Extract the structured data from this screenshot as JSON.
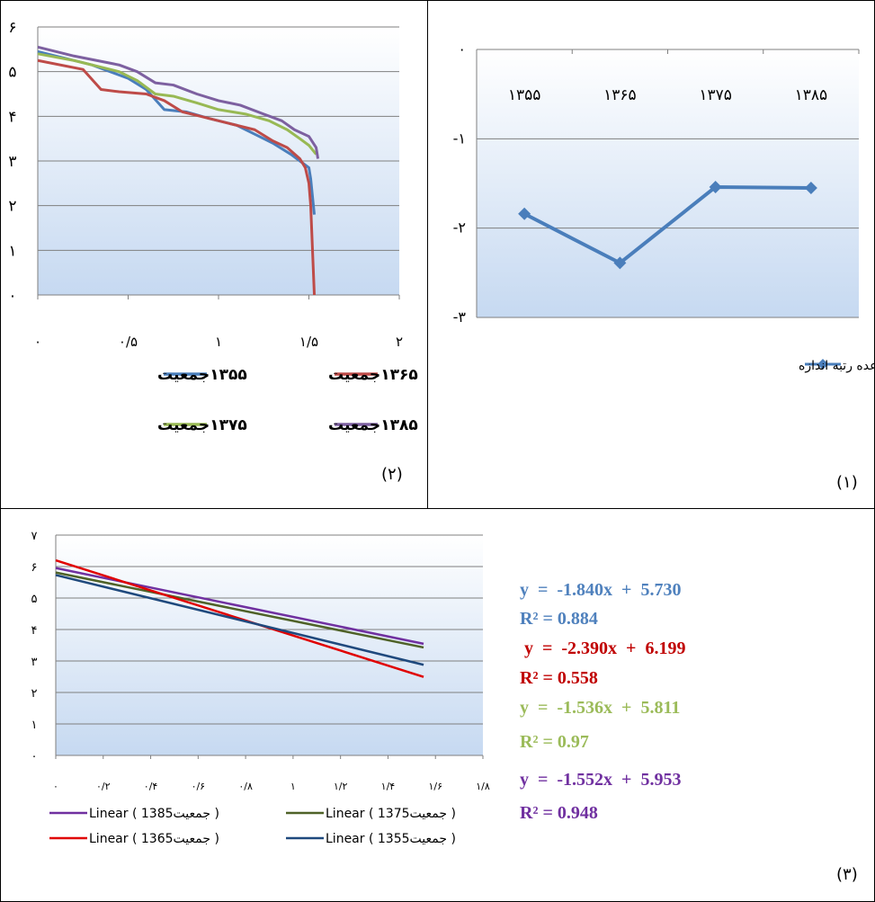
{
  "panels": {
    "p1_label": "(۱)",
    "p2_label": "(۲)",
    "p3_label": "(۳)"
  },
  "colors": {
    "blue": "#4a7ebb",
    "red": "#be4b48",
    "green": "#98b954",
    "purple": "#7d60a0",
    "dark_green": "#4f6228",
    "navy": "#1f497d",
    "pure_red": "#e00000",
    "eq_blue": "#4f81bd",
    "eq_red": "#c00000",
    "eq_green": "#9bbb59",
    "eq_purple": "#7030a0"
  },
  "equations": [
    {
      "eq": "y  =  -1.840x  +  5.730",
      "r2": "R² = 0.884",
      "color": "#4f81bd"
    },
    {
      "eq": " y  =  -2.390x  +  6.199",
      "r2": "R² = 0.558",
      "color": "#c00000"
    },
    {
      "eq": "y  =  -1.536x  +  5.811",
      "r2": "R² = 0.97",
      "color": "#9bbb59"
    },
    {
      "eq": "y  =  -1.552x  +  5.953",
      "r2": "R² = 0.948",
      "color": "#7030a0"
    }
  ],
  "chart_data": [
    {
      "id": "chart1",
      "type": "line",
      "categories": [
        "۱۳۵۵",
        "۱۳۶۵",
        "۱۳۷۵",
        "۱۳۸۵"
      ],
      "series": [
        {
          "name": "ضریب b در قاعده رتبه اندازه",
          "values": [
            -1.84,
            -2.39,
            -1.54,
            -1.55
          ]
        }
      ],
      "ylim": [
        -3,
        0
      ],
      "yticks": [
        "۰",
        "-۱",
        "-۲",
        "-۳"
      ],
      "legend": "bottom",
      "grid": true
    },
    {
      "id": "chart2",
      "type": "line",
      "xlim": [
        0,
        2
      ],
      "ylim": [
        0,
        6
      ],
      "xticks": [
        "۰",
        "۰/۵",
        "۱",
        "۱/۵",
        "۲"
      ],
      "yticks": [
        "۰",
        "۱",
        "۲",
        "۳",
        "۴",
        "۵",
        "۶"
      ],
      "series": [
        {
          "name": "جمعیت ۱۳۵۵",
          "color": "#4a7ebb",
          "points": [
            [
              0,
              5.45
            ],
            [
              0.3,
              5.15
            ],
            [
              0.5,
              4.85
            ],
            [
              0.6,
              4.6
            ],
            [
              0.7,
              4.15
            ],
            [
              0.82,
              4.1
            ],
            [
              0.95,
              3.95
            ],
            [
              1.1,
              3.8
            ],
            [
              1.2,
              3.6
            ],
            [
              1.3,
              3.4
            ],
            [
              1.4,
              3.15
            ],
            [
              1.45,
              3.0
            ],
            [
              1.5,
              2.85
            ],
            [
              1.51,
              2.6
            ],
            [
              1.53,
              1.8
            ]
          ]
        },
        {
          "name": "جمعیت ۱۳۶۵",
          "color": "#be4b48",
          "points": [
            [
              0,
              5.25
            ],
            [
              0.25,
              5.05
            ],
            [
              0.35,
              4.6
            ],
            [
              0.45,
              4.55
            ],
            [
              0.6,
              4.5
            ],
            [
              0.7,
              4.35
            ],
            [
              0.8,
              4.1
            ],
            [
              0.9,
              4.0
            ],
            [
              1.05,
              3.85
            ],
            [
              1.2,
              3.7
            ],
            [
              1.3,
              3.45
            ],
            [
              1.38,
              3.3
            ],
            [
              1.45,
              3.05
            ],
            [
              1.48,
              2.85
            ],
            [
              1.5,
              2.5
            ],
            [
              1.51,
              2.0
            ],
            [
              1.52,
              1.0
            ],
            [
              1.53,
              0.0
            ]
          ]
        },
        {
          "name": "جمعیت ۱۳۷۵",
          "color": "#98b954",
          "points": [
            [
              0,
              5.4
            ],
            [
              0.2,
              5.25
            ],
            [
              0.45,
              5.0
            ],
            [
              0.55,
              4.8
            ],
            [
              0.65,
              4.5
            ],
            [
              0.75,
              4.45
            ],
            [
              0.88,
              4.3
            ],
            [
              1.0,
              4.15
            ],
            [
              1.15,
              4.05
            ],
            [
              1.28,
              3.9
            ],
            [
              1.38,
              3.7
            ],
            [
              1.45,
              3.5
            ],
            [
              1.5,
              3.35
            ],
            [
              1.54,
              3.15
            ]
          ]
        },
        {
          "name": "جمعیت ۱۳۸۵",
          "color": "#7d60a0",
          "points": [
            [
              0,
              5.55
            ],
            [
              0.2,
              5.35
            ],
            [
              0.45,
              5.15
            ],
            [
              0.55,
              5.0
            ],
            [
              0.65,
              4.75
            ],
            [
              0.75,
              4.7
            ],
            [
              0.88,
              4.5
            ],
            [
              1.0,
              4.35
            ],
            [
              1.12,
              4.25
            ],
            [
              1.25,
              4.05
            ],
            [
              1.35,
              3.9
            ],
            [
              1.42,
              3.7
            ],
            [
              1.5,
              3.55
            ],
            [
              1.54,
              3.3
            ],
            [
              1.55,
              3.05
            ]
          ]
        }
      ],
      "legend": [
        {
          "label": "۱۳۵۵جمعیت",
          "color": "#4a7ebb"
        },
        {
          "label": "۱۳۶۵جمعیت",
          "color": "#be4b48"
        },
        {
          "label": "۱۳۷۵جمعیت",
          "color": "#98b954"
        },
        {
          "label": "۱۳۸۵جمعیت",
          "color": "#7d60a0"
        }
      ]
    },
    {
      "id": "chart3",
      "type": "line",
      "xlim": [
        0,
        1.8
      ],
      "ylim": [
        0,
        7
      ],
      "xticks": [
        "۰",
        "۰/۲",
        "۰/۴",
        "۰/۶",
        "۰/۸",
        "۱",
        "۱/۲",
        "۱/۴",
        "۱/۶",
        "۱/۸"
      ],
      "yticks": [
        "۰",
        "۱",
        "۲",
        "۳",
        "۴",
        "۵",
        "۶",
        "۷"
      ],
      "series": [
        {
          "name": "Linear ( 1385جمعیت )",
          "color": "#7030a0",
          "slope": -1.552,
          "intercept": 5.953,
          "x_range": [
            0,
            1.55
          ]
        },
        {
          "name": "Linear ( 1375جمعیت )",
          "color": "#4f6228",
          "slope": -1.536,
          "intercept": 5.811,
          "x_range": [
            0,
            1.55
          ]
        },
        {
          "name": "Linear ( 1365جمعیت )",
          "color": "#e00000",
          "slope": -2.39,
          "intercept": 6.199,
          "x_range": [
            0,
            1.55
          ]
        },
        {
          "name": "Linear ( 1355جمعیت )",
          "color": "#1f497d",
          "slope": -1.84,
          "intercept": 5.73,
          "x_range": [
            0,
            1.55
          ]
        }
      ],
      "legend_rows": [
        {
          "color": "#7030a0",
          "label": "Linear ( 1385جمعیت    )"
        },
        {
          "color": "#4f6228",
          "label": "Linear ( 1375جمعیت    )"
        },
        {
          "color": "#e00000",
          "label": "Linear ( 1365جمعیت    )"
        },
        {
          "color": "#1f497d",
          "label": "Linear ( 1355جمعیت    )"
        }
      ]
    }
  ]
}
